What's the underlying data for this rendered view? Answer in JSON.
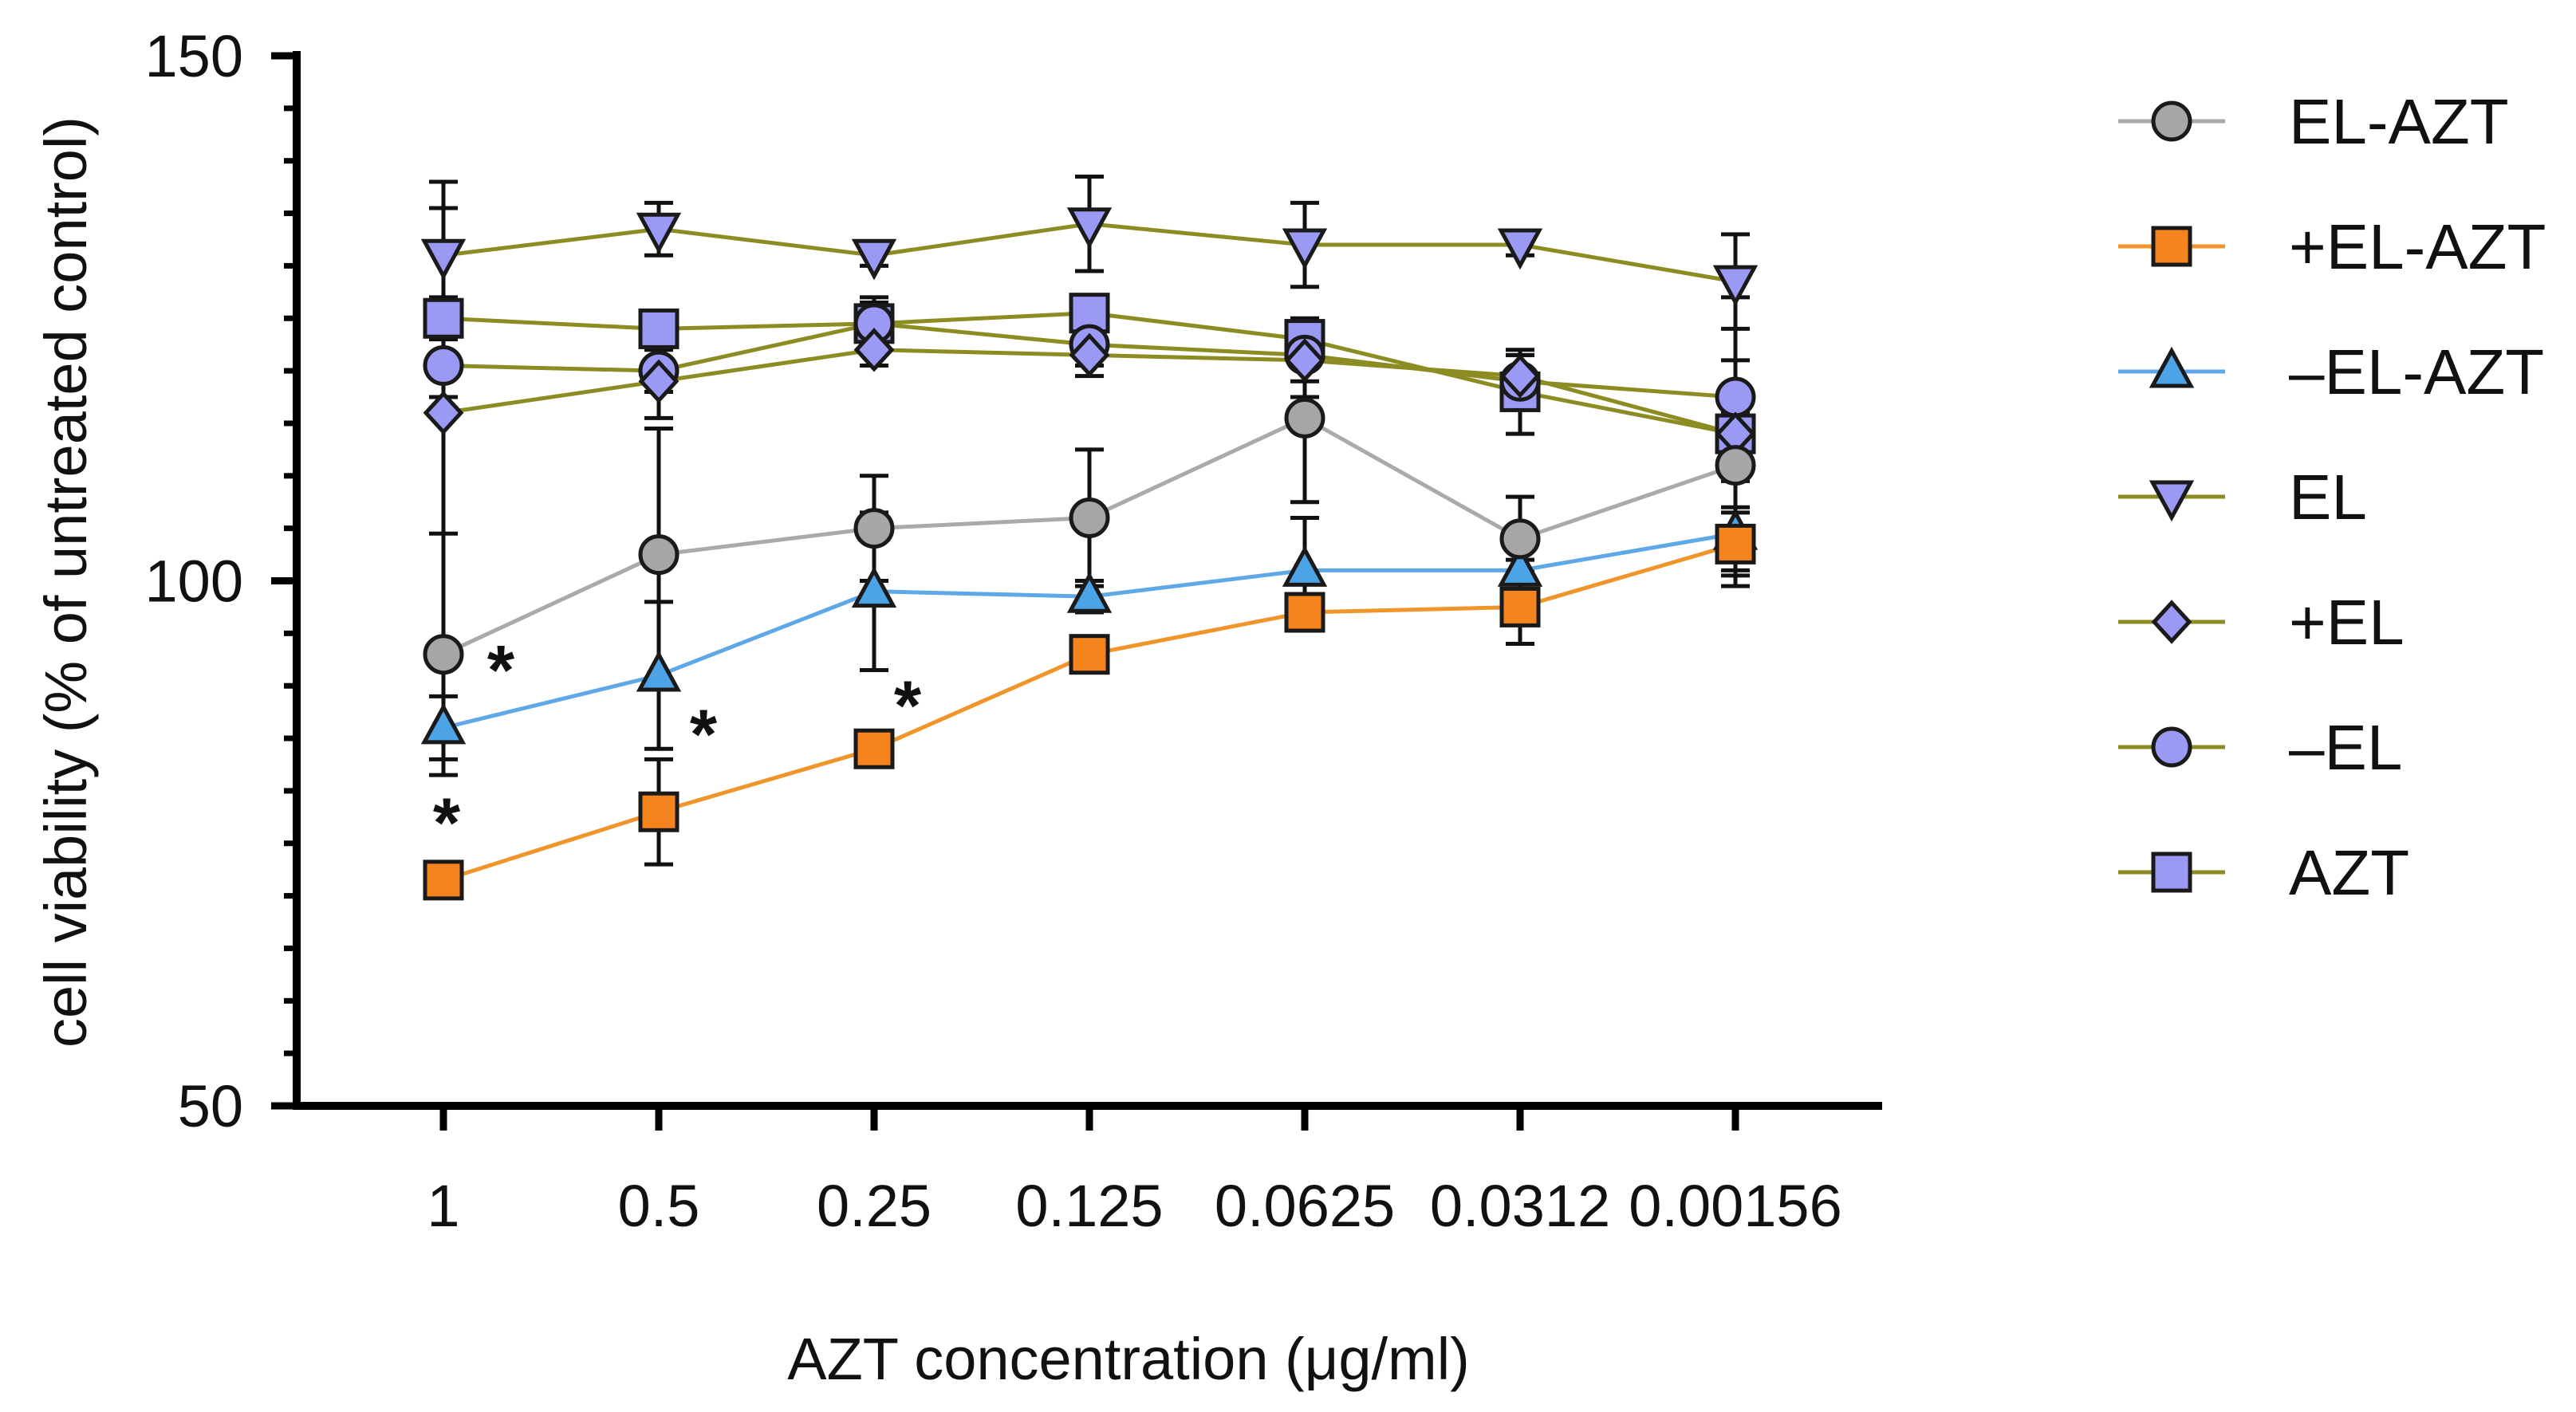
{
  "chart_data": {
    "type": "line",
    "title": "",
    "xlabel": "AZT concentration (μg/ml)",
    "ylabel": "cell viability (% of untreated control)",
    "categories": [
      "1",
      "0.5",
      "0.25",
      "0.125",
      "0.0625",
      "0.0312",
      "0.00156"
    ],
    "ylim": [
      50,
      150
    ],
    "yticks": [
      50,
      100,
      150
    ],
    "y_minor_step": 5,
    "grid": false,
    "legend_position": "right",
    "series": [
      {
        "name": "EL-AZT",
        "marker": "circle",
        "line_color": "#aaaaaa",
        "fill": "#a6a6a6",
        "values": [
          93,
          102.5,
          105,
          106,
          115.5,
          104,
          111
        ],
        "errors": [
          11.5,
          12,
          5,
          6.5,
          8,
          4,
          4
        ]
      },
      {
        "name": "+EL-AZT",
        "marker": "square",
        "line_color": "#f0952a",
        "fill": "#f5841f",
        "values": [
          71.5,
          78,
          84,
          93,
          97,
          97.5,
          103.5
        ],
        "errors": [
          1.5,
          5,
          1.5,
          1.5,
          1.5,
          3.5,
          3
        ]
      },
      {
        "name": "–EL-AZT",
        "marker": "triangle-up",
        "line_color": "#5fa8e8",
        "fill": "#4ca3e6",
        "values": [
          86,
          91,
          99,
          98.5,
          101,
          101,
          104.5
        ],
        "errors": [
          3,
          7,
          7.5,
          1.5,
          5,
          1,
          5
        ]
      },
      {
        "name": "EL",
        "marker": "triangle-down",
        "line_color": "#8c8c22",
        "fill": "#9a9af5",
        "values": [
          131,
          133.5,
          131,
          134,
          132,
          132,
          128.5
        ],
        "errors": [
          4.5,
          2.5,
          1,
          4.5,
          4,
          1,
          4.5
        ]
      },
      {
        "name": "+EL",
        "marker": "diamond",
        "line_color": "#8c8c22",
        "fill": "#9a9af5",
        "values": [
          116,
          119,
          122,
          121.5,
          121,
          119.5,
          114
        ],
        "errors": [
          22,
          3.5,
          1.5,
          2,
          3.5,
          2,
          13
        ]
      },
      {
        "name": "–EL",
        "marker": "circle",
        "line_color": "#8c8c22",
        "fill": "#9a9af5",
        "values": [
          120.5,
          120,
          124.5,
          122.5,
          121.5,
          119,
          117.5
        ],
        "errors": [
          3,
          2,
          2,
          2,
          2.5,
          2.5,
          3.5
        ]
      },
      {
        "name": "AZT",
        "marker": "square",
        "line_color": "#8c8c22",
        "fill": "#9a9af5",
        "values": [
          125,
          124,
          124.5,
          125.5,
          123,
          118,
          114
        ],
        "errors": [
          2,
          1.5,
          2.5,
          1.5,
          2,
          4,
          2
        ]
      }
    ],
    "annotations": [
      {
        "text": "*",
        "series": "EL-AZT",
        "category": "1"
      },
      {
        "text": "*",
        "series": "+EL-AZT",
        "category": "1"
      },
      {
        "text": "*",
        "series": "–EL-AZT",
        "category": "0.5"
      },
      {
        "text": "*",
        "series": "+EL-AZT",
        "category": "0.25"
      }
    ]
  }
}
